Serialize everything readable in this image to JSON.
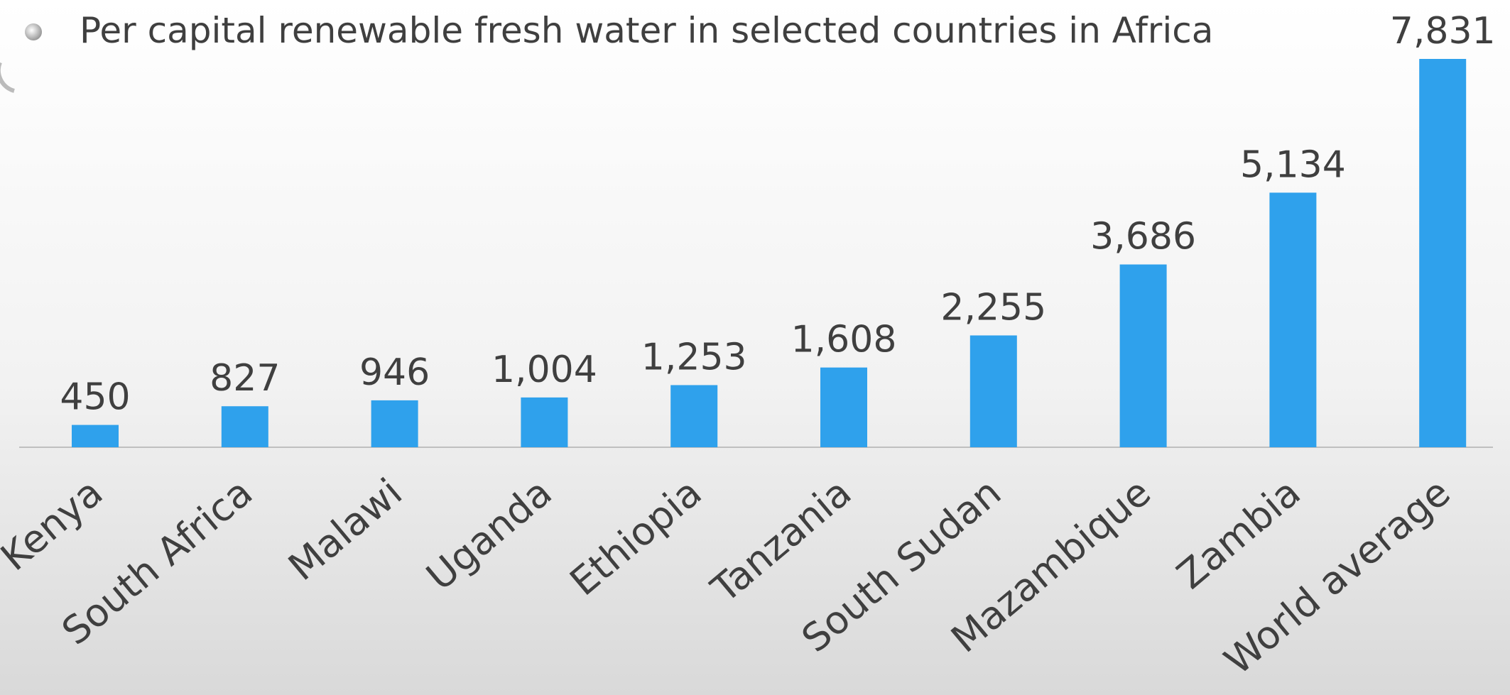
{
  "chart_data": {
    "type": "bar",
    "title": "Per capital renewable fresh water in selected countries in Africa",
    "categories": [
      "Kenya",
      "South Africa",
      "Malawi",
      "Uganda",
      "Ethiopia",
      "Tanzania",
      "South Sudan",
      "Mazambique",
      "Zambia",
      "World average"
    ],
    "values": [
      450,
      827,
      946,
      1004,
      1253,
      1608,
      2255,
      3686,
      5134,
      7831
    ],
    "value_labels": [
      "450",
      "827",
      "946",
      "1,004",
      "1,253",
      "1,608",
      "2,255",
      "3,686",
      "5,134",
      "7,831"
    ],
    "color": "#2fa1ec"
  }
}
